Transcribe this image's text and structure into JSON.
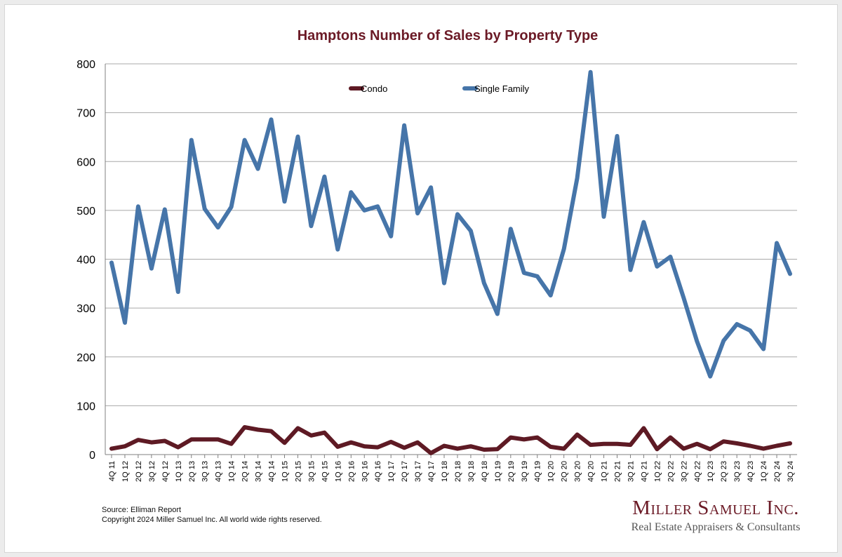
{
  "chart_data": {
    "type": "line",
    "title": "Hamptons Number of Sales by Property Type",
    "xlabel": "",
    "ylabel": "",
    "ylim": [
      0,
      800
    ],
    "yticks": [
      0,
      100,
      200,
      300,
      400,
      500,
      600,
      700,
      800
    ],
    "grid": true,
    "legend_position": "top-center",
    "categories": [
      "4Q 11",
      "1Q 12",
      "2Q 12",
      "3Q 12",
      "4Q 12",
      "1Q 13",
      "2Q 13",
      "3Q 13",
      "4Q 13",
      "1Q 14",
      "2Q 14",
      "3Q 14",
      "4Q 14",
      "1Q 15",
      "2Q 15",
      "3Q 15",
      "4Q 15",
      "1Q 16",
      "2Q 16",
      "3Q 16",
      "4Q 16",
      "1Q 17",
      "2Q 17",
      "3Q 17",
      "4Q 17",
      "1Q 18",
      "2Q 18",
      "3Q 18",
      "4Q 18",
      "1Q 19",
      "2Q 19",
      "3Q 19",
      "4Q 19",
      "1Q 20",
      "2Q 20",
      "3Q 20",
      "4Q 20",
      "1Q 21",
      "2Q 21",
      "3Q 21",
      "4Q 21",
      "1Q 22",
      "2Q 22",
      "3Q 22",
      "4Q 22",
      "1Q 23",
      "2Q 23",
      "3Q 23",
      "4Q 23",
      "1Q 24",
      "2Q 24",
      "3Q 24"
    ],
    "series": [
      {
        "name": "Condo",
        "color": "#5e1a24",
        "values": [
          12,
          17,
          30,
          25,
          28,
          15,
          31,
          31,
          31,
          22,
          56,
          51,
          48,
          24,
          54,
          39,
          45,
          16,
          25,
          17,
          15,
          26,
          14,
          25,
          3,
          18,
          12,
          17,
          10,
          11,
          35,
          31,
          35,
          16,
          12,
          41,
          20,
          22,
          22,
          20,
          54,
          11,
          35,
          12,
          22,
          11,
          27,
          23,
          18,
          12,
          18,
          23
        ]
      },
      {
        "name": "Single Family",
        "color": "#4675a9",
        "values": [
          393,
          270,
          508,
          381,
          502,
          333,
          644,
          503,
          465,
          507,
          644,
          585,
          686,
          518,
          651,
          468,
          569,
          420,
          537,
          500,
          508,
          447,
          674,
          494,
          547,
          351,
          492,
          458,
          351,
          288,
          462,
          372,
          365,
          326,
          421,
          566,
          783,
          487,
          652,
          378,
          476,
          385,
          405,
          321,
          232,
          160,
          233,
          267,
          254,
          216,
          433,
          370
        ]
      }
    ]
  },
  "footer": {
    "source": "Source: Elliman Report",
    "copyright": "Copyright 2024 Miller Samuel Inc.  All world wide rights reserved."
  },
  "logo": {
    "name": "Miller Samuel Inc.",
    "tagline": "Real Estate Appraisers & Consultants"
  }
}
